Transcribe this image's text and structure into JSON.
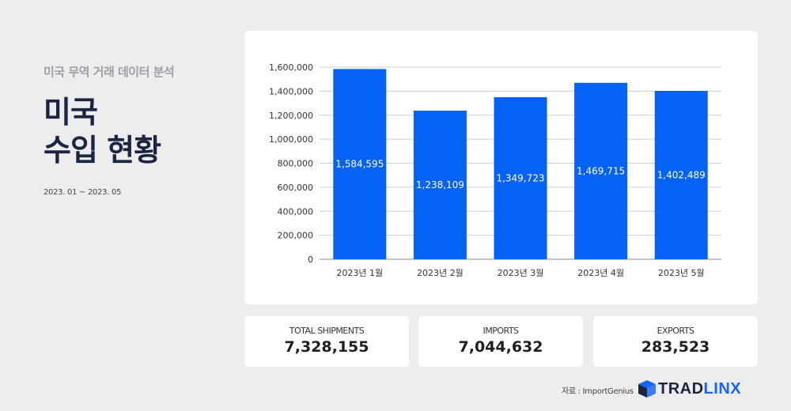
{
  "header": {
    "subtitle": "미국 무역 거래 데이터 분석",
    "title_line1": "미국",
    "title_line2": "수입 현황",
    "period": "2023. 01 ~ 2023. 05"
  },
  "colors": {
    "bar": "#0463f4",
    "grid": "#cfcfcf",
    "navy": "#1b2440",
    "accent": "#1565ff"
  },
  "chart_data": {
    "type": "bar",
    "categories": [
      "2023년 1월",
      "2023년 2월",
      "2023년 3월",
      "2023년 4월",
      "2023년 5월"
    ],
    "values": [
      1584595,
      1238109,
      1349723,
      1469715,
      1402489
    ],
    "value_labels": [
      "1,584,595",
      "1,238,109",
      "1,349,723",
      "1,469,715",
      "1,402,489"
    ],
    "ylim": [
      0,
      1600000
    ],
    "yticks": [
      0,
      200000,
      400000,
      600000,
      800000,
      1000000,
      1200000,
      1400000,
      1600000
    ],
    "ytick_labels": [
      "0",
      "200,000",
      "400,000",
      "600,000",
      "800,000",
      "1,000,000",
      "1,200,000",
      "1,400,000",
      "1,600,000"
    ],
    "grid": true,
    "legend": "none"
  },
  "stats": [
    {
      "label": "TOTAL SHIPMENTS",
      "value": "7,328,155"
    },
    {
      "label": "IMPORTS",
      "value": "7,044,632"
    },
    {
      "label": "EXPORTS",
      "value": "283,523"
    }
  ],
  "footer": {
    "source": "자료 : ImportGenius",
    "logo_part1": "TRAD",
    "logo_part2": "LINX",
    "logo_icon": "cube-logo-icon"
  }
}
